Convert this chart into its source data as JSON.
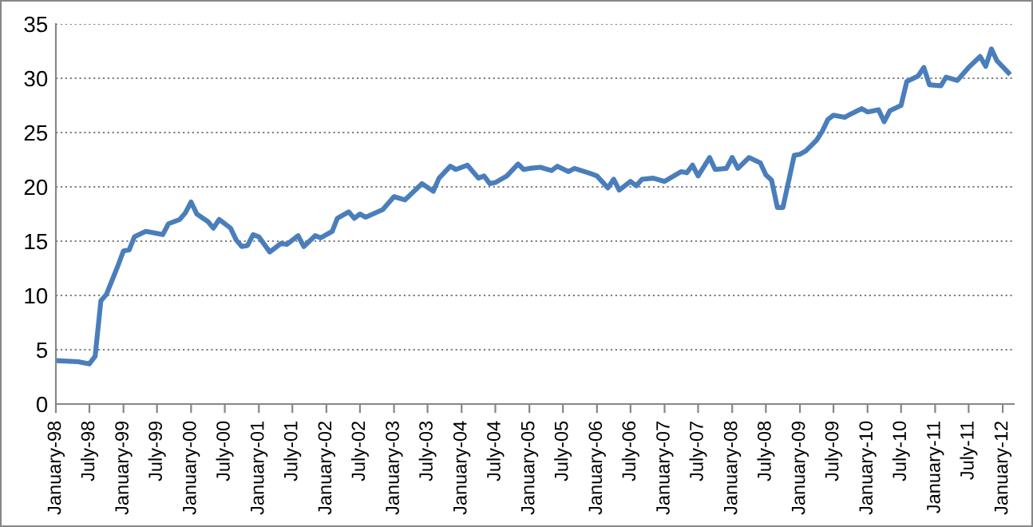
{
  "chart_data": {
    "type": "line",
    "x": [
      "1998-01",
      "1998-05",
      "1998-07",
      "1998-08",
      "1998-09",
      "1998-10",
      "1998-12",
      "1999-01",
      "1999-02",
      "1999-03",
      "1999-05",
      "1999-06",
      "1999-08",
      "1999-09",
      "1999-11",
      "1999-12",
      "2000-01",
      "2000-02",
      "2000-04",
      "2000-05",
      "2000-06",
      "2000-08",
      "2000-09",
      "2000-10",
      "2000-11",
      "2000-12",
      "2001-01",
      "2001-03",
      "2001-05",
      "2001-06",
      "2001-08",
      "2001-09",
      "2001-11",
      "2001-12",
      "2002-02",
      "2002-03",
      "2002-05",
      "2002-06",
      "2002-07",
      "2002-08",
      "2002-11",
      "2003-01",
      "2003-03",
      "2003-06",
      "2003-08",
      "2003-09",
      "2003-11",
      "2003-12",
      "2004-02",
      "2004-04",
      "2004-05",
      "2004-06",
      "2004-07",
      "2004-09",
      "2004-11",
      "2004-12",
      "2005-01",
      "2005-03",
      "2005-05",
      "2005-06",
      "2005-08",
      "2005-09",
      "2005-12",
      "2006-01",
      "2006-03",
      "2006-04",
      "2006-05",
      "2006-07",
      "2006-08",
      "2006-09",
      "2006-11",
      "2007-01",
      "2007-04",
      "2007-05",
      "2007-06",
      "2007-07",
      "2007-09",
      "2007-10",
      "2007-12",
      "2008-01",
      "2008-02",
      "2008-04",
      "2008-06",
      "2008-07",
      "2008-08",
      "2008-09",
      "2008-10",
      "2008-12",
      "2009-01",
      "2009-02",
      "2009-04",
      "2009-05",
      "2009-06",
      "2009-07",
      "2009-09",
      "2009-10",
      "2009-12",
      "2010-01",
      "2010-03",
      "2010-04",
      "2010-05",
      "2010-07",
      "2010-08",
      "2010-10",
      "2010-11",
      "2010-12",
      "2011-02",
      "2011-03",
      "2011-05",
      "2011-07",
      "2011-09",
      "2011-10",
      "2011-11",
      "2011-12",
      "2012-02"
    ],
    "series": [
      {
        "color": "#4a7ebb",
        "values": [
          4.0,
          3.9,
          3.7,
          4.4,
          9.5,
          10.1,
          12.7,
          14.1,
          14.2,
          15.4,
          15.9,
          15.8,
          15.6,
          16.6,
          17.0,
          17.6,
          18.6,
          17.5,
          16.8,
          16.2,
          17.0,
          16.2,
          15.1,
          14.5,
          14.6,
          15.6,
          15.4,
          14.0,
          14.8,
          14.7,
          15.5,
          14.5,
          15.5,
          15.3,
          15.9,
          17.1,
          17.7,
          17.1,
          17.5,
          17.2,
          17.9,
          19.1,
          18.8,
          20.3,
          19.6,
          20.8,
          21.9,
          21.6,
          22.0,
          20.8,
          21.0,
          20.3,
          20.4,
          21.0,
          22.1,
          21.6,
          21.7,
          21.8,
          21.5,
          21.9,
          21.4,
          21.7,
          21.2,
          21.0,
          19.9,
          20.7,
          19.7,
          20.5,
          20.1,
          20.7,
          20.8,
          20.5,
          21.4,
          21.3,
          22.0,
          21.0,
          22.7,
          21.6,
          21.7,
          22.7,
          21.7,
          22.7,
          22.2,
          21.1,
          20.6,
          18.1,
          18.1,
          22.9,
          23.0,
          23.3,
          24.3,
          25.1,
          26.2,
          26.6,
          26.4,
          26.7,
          27.2,
          26.9,
          27.1,
          26.0,
          27.0,
          27.5,
          29.7,
          30.2,
          31.0,
          29.4,
          29.3,
          30.1,
          29.8,
          31.0,
          32.0,
          31.1,
          32.7,
          31.6,
          30.5
        ]
      }
    ],
    "xlim": [
      "1998-01",
      "2012-03"
    ],
    "xticks": [
      {
        "value": "1998-01",
        "label": "January-98"
      },
      {
        "value": "1998-07",
        "label": "July-98"
      },
      {
        "value": "1999-01",
        "label": "January-99"
      },
      {
        "value": "1999-07",
        "label": "July-99"
      },
      {
        "value": "2000-01",
        "label": "January-00"
      },
      {
        "value": "2000-07",
        "label": "July-00"
      },
      {
        "value": "2001-01",
        "label": "January-01"
      },
      {
        "value": "2001-07",
        "label": "July-01"
      },
      {
        "value": "2002-01",
        "label": "January-02"
      },
      {
        "value": "2002-07",
        "label": "July-02"
      },
      {
        "value": "2003-01",
        "label": "January-03"
      },
      {
        "value": "2003-07",
        "label": "July-03"
      },
      {
        "value": "2004-01",
        "label": "January-04"
      },
      {
        "value": "2004-07",
        "label": "July-04"
      },
      {
        "value": "2005-01",
        "label": "January-05"
      },
      {
        "value": "2005-07",
        "label": "July-05"
      },
      {
        "value": "2006-01",
        "label": "January-06"
      },
      {
        "value": "2006-07",
        "label": "July-06"
      },
      {
        "value": "2007-01",
        "label": "January-07"
      },
      {
        "value": "2007-07",
        "label": "July-07"
      },
      {
        "value": "2008-01",
        "label": "January-08"
      },
      {
        "value": "2008-07",
        "label": "July-08"
      },
      {
        "value": "2009-01",
        "label": "January-09"
      },
      {
        "value": "2009-07",
        "label": "July-09"
      },
      {
        "value": "2010-01",
        "label": "January-10"
      },
      {
        "value": "2010-07",
        "label": "July-10"
      },
      {
        "value": "2011-01",
        "label": "January-11"
      },
      {
        "value": "2011-07",
        "label": "July-11"
      },
      {
        "value": "2012-01",
        "label": "January-12"
      }
    ],
    "ylim": [
      0,
      35
    ],
    "yticks": [
      0,
      5,
      10,
      15,
      20,
      25,
      30,
      35
    ],
    "grid": "y",
    "legend": false,
    "marker": "none",
    "line_style": "solid"
  }
}
